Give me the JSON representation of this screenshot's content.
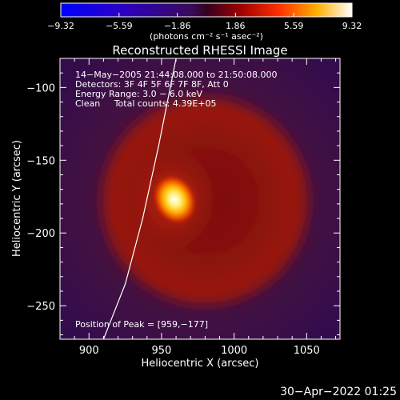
{
  "chart_data": {
    "type": "heatmap",
    "title": "Reconstructed RHESSI Image",
    "xlabel": "Heliocentric X (arcsec)",
    "ylabel": "Heliocentric Y (arcsec)",
    "xlim": [
      880,
      1073
    ],
    "ylim": [
      -273,
      -80
    ],
    "x_ticks": [
      900,
      950,
      1000,
      1050
    ],
    "y_ticks": [
      -100,
      -150,
      -200,
      -250
    ],
    "x_tick_labels": [
      "900",
      "950",
      "1000",
      "1050"
    ],
    "y_tick_labels": [
      "−100",
      "−150",
      "−200",
      "−250"
    ],
    "colorbar": {
      "range": [
        -9.32,
        9.32
      ],
      "ticks": [
        -9.32,
        -5.59,
        -1.86,
        1.86,
        5.59,
        9.32
      ],
      "tick_labels": [
        "−9.32",
        "−5.59",
        "−1.86",
        "1.86",
        "5.59",
        "9.32"
      ],
      "units": "(photons cm⁻² s⁻¹ asec⁻²)"
    },
    "annotations": [
      "14−May−2005 21:44:08.000 to 21:50:08.000",
      "Detectors: 3F 4F 5F 6F 7F 8F, Att 0",
      "Energy Range: 3.0 − 6.0 keV",
      "Clean     Total counts: 4.39E+05"
    ],
    "peak_label": "Position of Peak = [959,−177]",
    "peak": {
      "x": 959,
      "y": -177,
      "value": 9.32
    },
    "ring": {
      "cx": 980,
      "cy": -178,
      "r": 72
    },
    "limb": [
      [
        960,
        -80
      ],
      [
        948,
        -140
      ],
      [
        937,
        -190
      ],
      [
        925,
        -235
      ],
      [
        910,
        -273
      ]
    ],
    "timestamp": "30−Apr−2022 01:25"
  }
}
